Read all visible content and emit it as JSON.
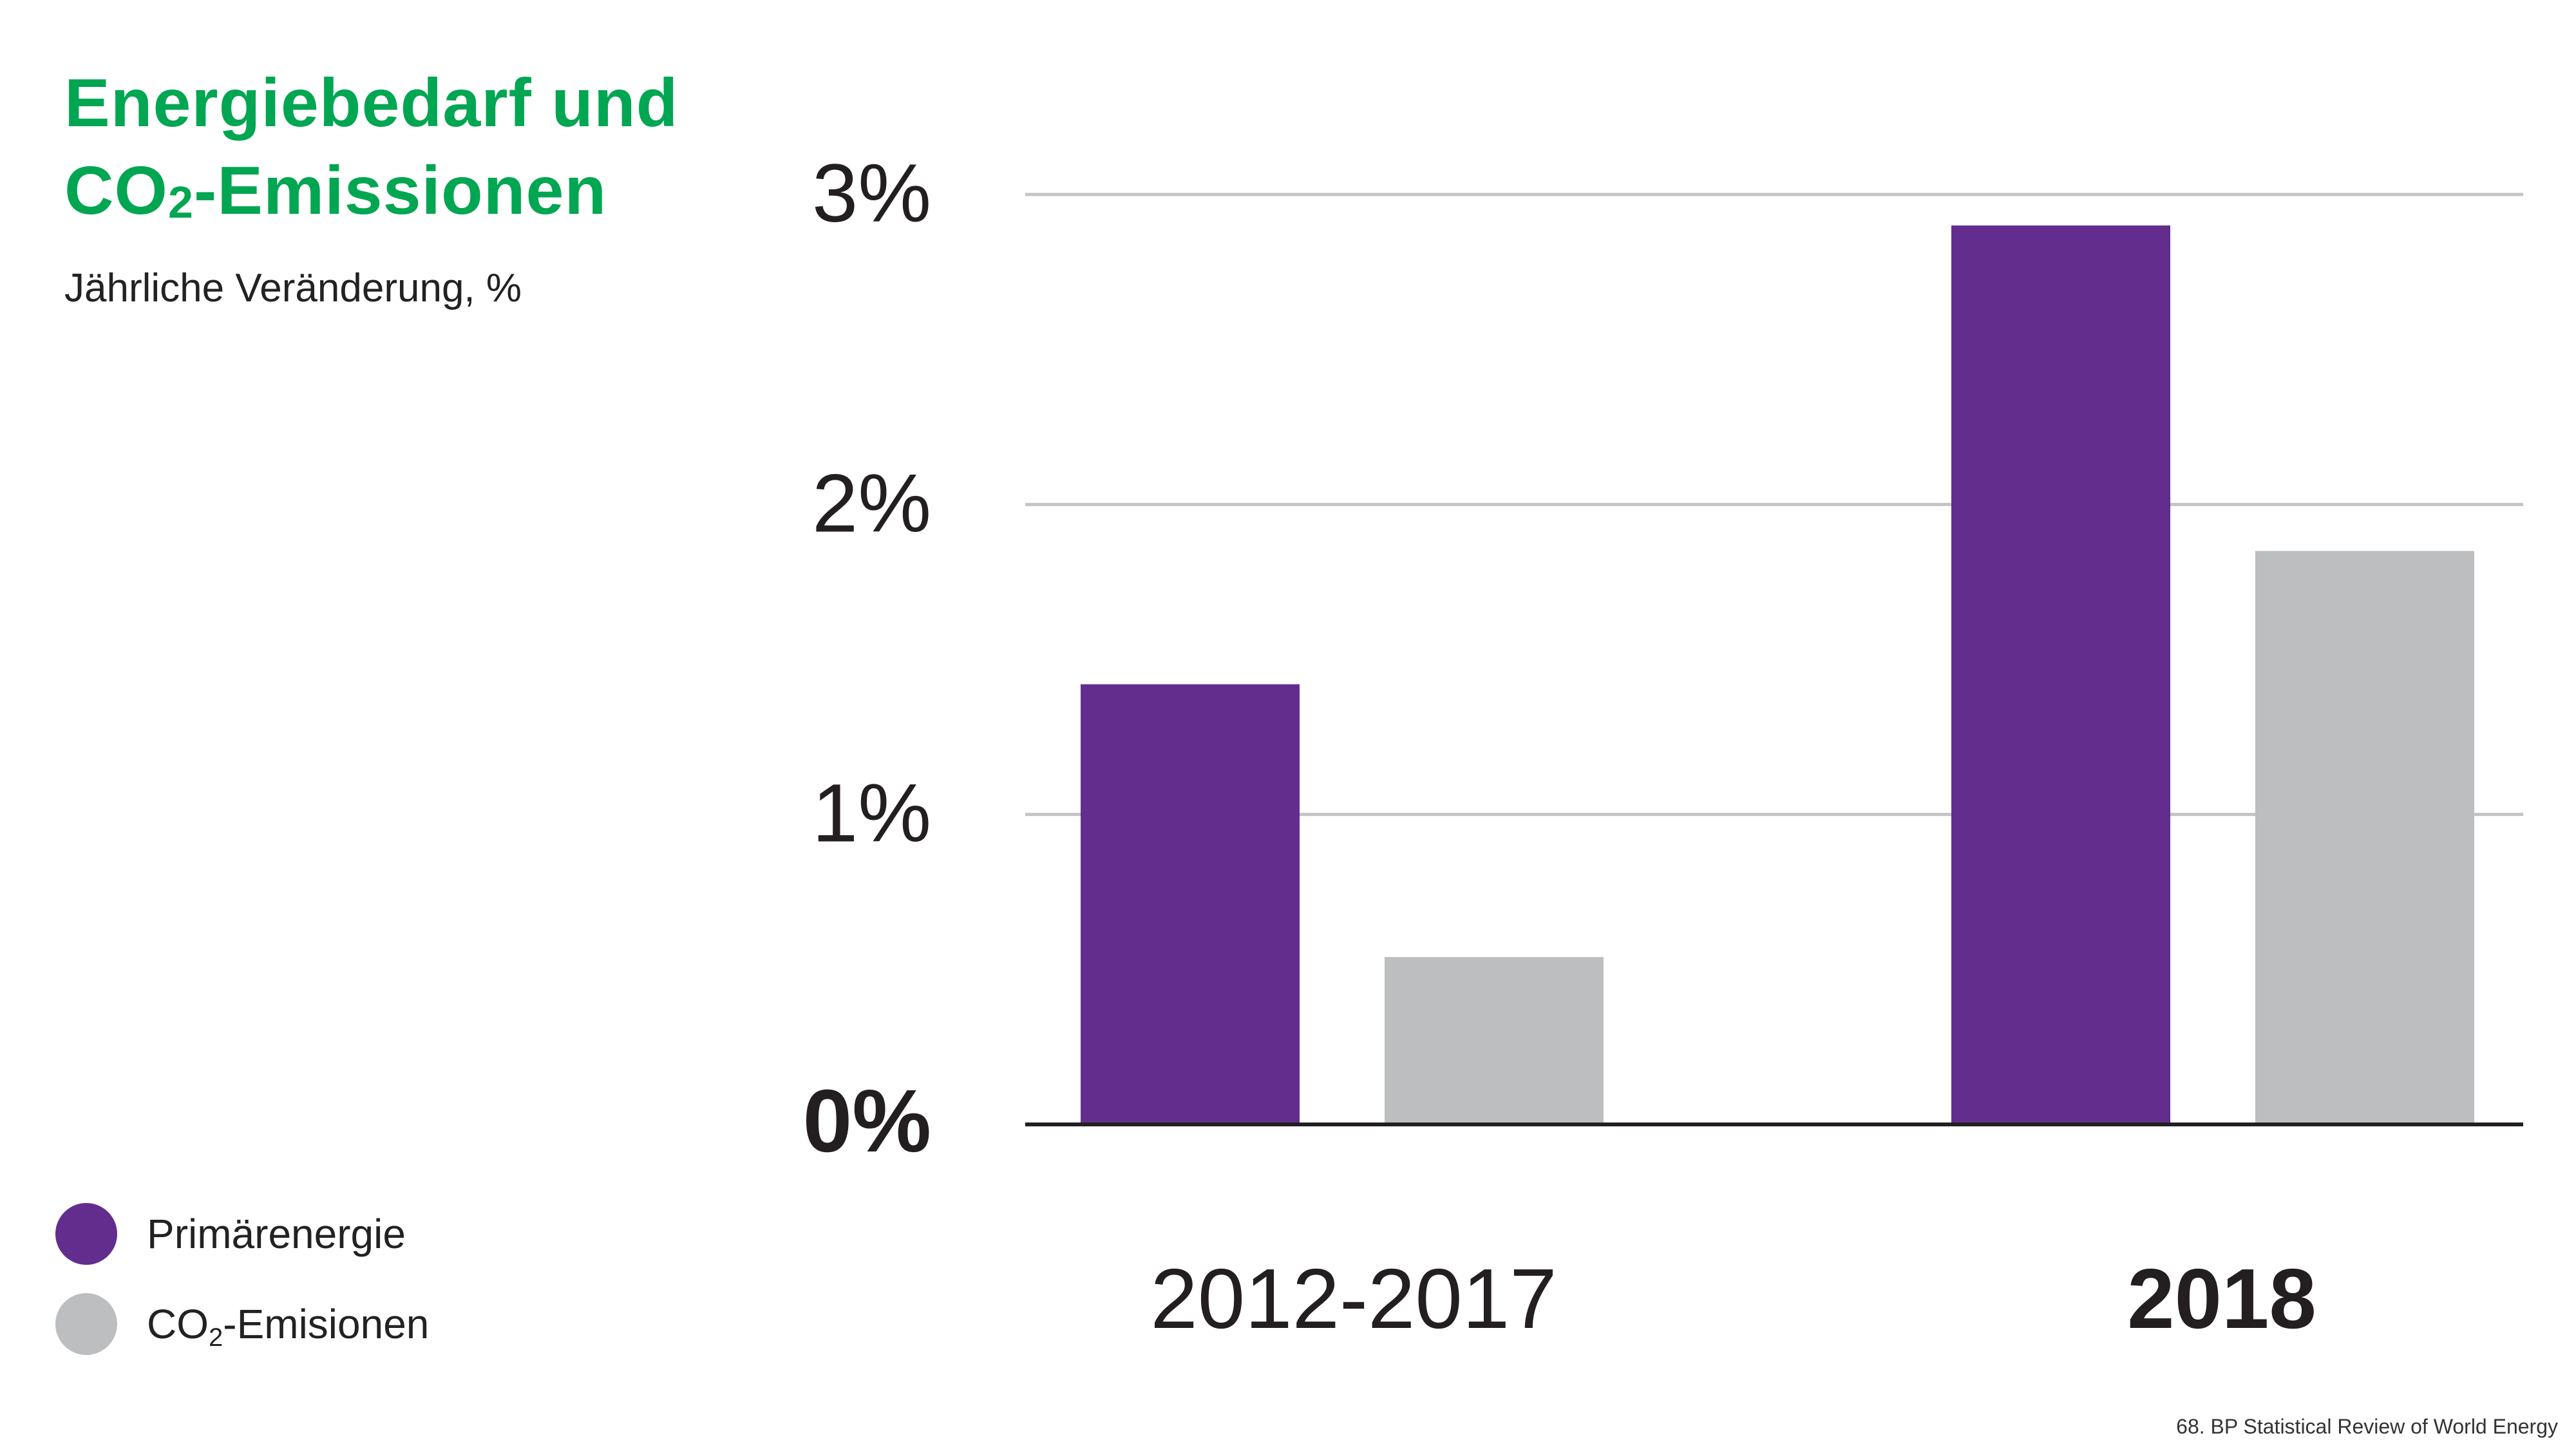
{
  "title": {
    "line1": "Energiebedarf und",
    "line2_pre": "CO",
    "line2_sub": "2",
    "line2_post": "-Emissionen"
  },
  "subtitle": "Jährliche Veränderung,  %",
  "legend": {
    "primary": {
      "label": "Primärenergie",
      "color": "#632d8e"
    },
    "co2": {
      "label_pre": "CO",
      "label_sub": "2",
      "label_post": "-Emisionen",
      "color": "#bcbec0"
    }
  },
  "footer": "68. BP Statistical Review of World Energy",
  "chart_data": {
    "type": "bar",
    "categories": [
      "2012-2017",
      "2018"
    ],
    "category_bold": [
      false,
      true
    ],
    "series": [
      {
        "values": [
          1.42,
          2.9
        ],
        "color": "#632d8e"
      },
      {
        "values": [
          0.54,
          1.85
        ],
        "color": "#bcbec0"
      }
    ],
    "yticks": [
      {
        "value": 0,
        "label": "0%",
        "bold": true
      },
      {
        "value": 1,
        "label": "1%",
        "bold": false
      },
      {
        "value": 2,
        "label": "2%",
        "bold": false
      },
      {
        "value": 3,
        "label": "3%",
        "bold": false
      }
    ],
    "ylim": [
      0,
      3
    ],
    "grid": true,
    "legend_position": "bottom-left"
  }
}
